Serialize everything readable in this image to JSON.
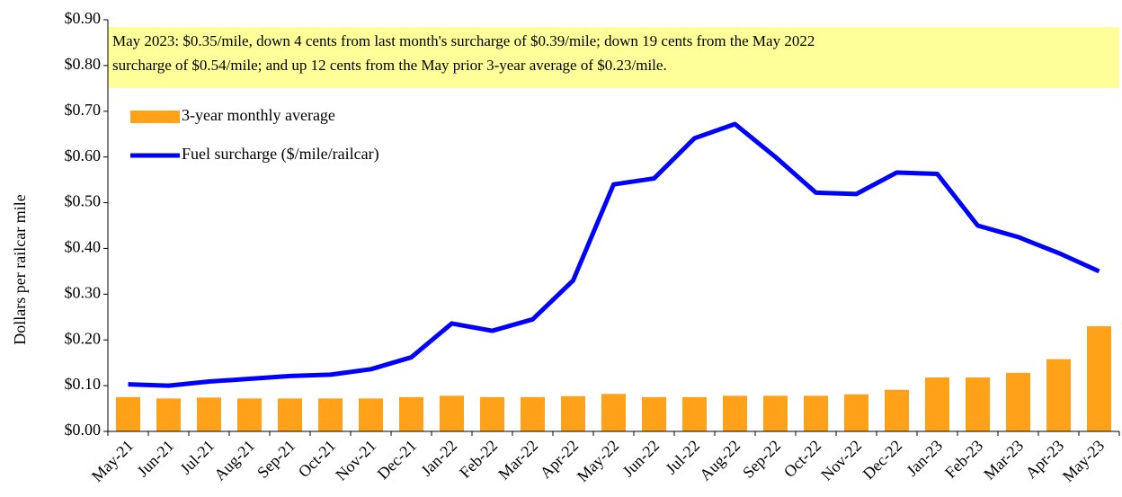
{
  "chart_data": {
    "type": "combo",
    "annotation": [
      "May 2023: $0.35/mile,  down 4 cents from last month's surcharge of $0.39/mile;  down 19 cents from the May 2022",
      "surcharge of $0.54/mile;  and up 12 cents from the May prior 3-year average of  $0.23/mile."
    ],
    "y_label": "Dollars per railcar mile",
    "categories": [
      "May-21",
      "Jun-21",
      "Jul-21",
      "Aug-21",
      "Sep-21",
      "Oct-21",
      "Nov-21",
      "Dec-21",
      "Jan-22",
      "Feb-22",
      "Mar-22",
      "Apr-22",
      "May-22",
      "Jun-22",
      "Jul-22",
      "Aug-22",
      "Sep-22",
      "Oct-22",
      "Nov-22",
      "Dec-22",
      "Jan-23",
      "Feb-23",
      "Mar-23",
      "Apr-23",
      "May-23"
    ],
    "series": [
      {
        "name": "3-year monthly average",
        "type": "bar",
        "color": "#ffa21a",
        "values": [
          0.075,
          0.072,
          0.074,
          0.072,
          0.072,
          0.072,
          0.072,
          0.075,
          0.078,
          0.075,
          0.075,
          0.077,
          0.082,
          0.075,
          0.075,
          0.078,
          0.078,
          0.078,
          0.081,
          0.091,
          0.118,
          0.118,
          0.128,
          0.158,
          0.23
        ]
      },
      {
        "name": "Fuel surcharge ($/mile/railcar)",
        "type": "line",
        "color": "#0000ff",
        "values": [
          0.103,
          0.1,
          0.109,
          0.115,
          0.121,
          0.124,
          0.136,
          0.162,
          0.236,
          0.22,
          0.245,
          0.33,
          0.54,
          0.553,
          0.641,
          0.672,
          0.6,
          0.522,
          0.519,
          0.566,
          0.563,
          0.45,
          0.425,
          0.39,
          0.35
        ]
      }
    ],
    "ylim": [
      0,
      0.9
    ],
    "yticks": [
      {
        "value": 0,
        "label": "$0.00"
      },
      {
        "value": 0.1,
        "label": "$0.10"
      },
      {
        "value": 0.2,
        "label": "$0.20"
      },
      {
        "value": 0.3,
        "label": "$0.30"
      },
      {
        "value": 0.4,
        "label": "$0.40"
      },
      {
        "value": 0.5,
        "label": "$0.50"
      },
      {
        "value": 0.6,
        "label": "$0.60"
      },
      {
        "value": 0.7,
        "label": "$0.70"
      },
      {
        "value": 0.8,
        "label": "$0.80"
      },
      {
        "value": 0.9,
        "label": "$0.90"
      }
    ],
    "grid": false,
    "legend": "upper left"
  }
}
